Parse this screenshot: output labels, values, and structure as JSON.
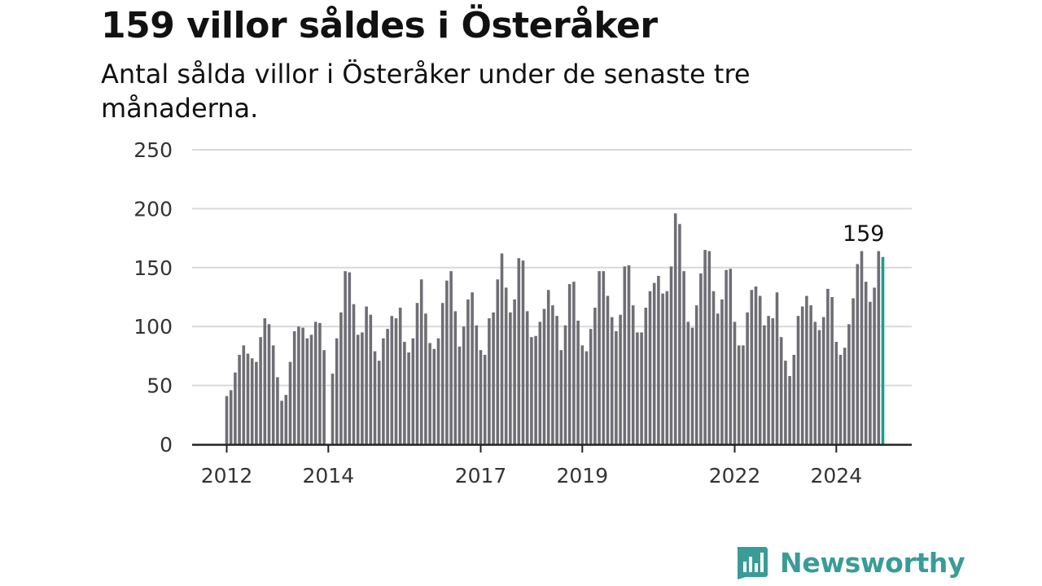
{
  "title": "159 villor såldes i Österåker",
  "subtitle": "Antal sålda villor i Österåker under de senaste tre månaderna.",
  "brand": {
    "name": "Newsworthy",
    "color": "#3a9c97",
    "icon": "bar-chart-badge-icon"
  },
  "colors": {
    "bars": "#6f6e75",
    "highlight": "#1b9e8f",
    "grid": "#d9d9d9",
    "axis": "#222222"
  },
  "chart_data": {
    "type": "bar",
    "title": "159 villor såldes i Österåker",
    "subtitle": "Antal sålda villor i Österåker under de senaste tre månaderna.",
    "xlabel": "",
    "ylabel": "",
    "ylim": [
      0,
      250
    ],
    "yticks": [
      0,
      50,
      100,
      150,
      200,
      250
    ],
    "xticks": [
      "2012",
      "2014",
      "2017",
      "2019",
      "2022",
      "2024"
    ],
    "grid": true,
    "series": [
      {
        "start": "2012-01",
        "values": [
          41,
          46,
          61,
          76,
          84,
          77,
          73,
          70,
          91,
          107,
          102,
          84,
          57,
          37,
          42,
          70,
          96,
          100,
          99,
          90,
          93,
          104,
          103,
          80,
          null,
          60,
          90,
          112,
          147,
          146,
          119,
          93,
          95,
          117,
          110,
          79,
          71,
          90,
          98,
          109,
          107,
          116,
          87,
          78,
          90,
          120,
          140,
          111,
          86,
          81,
          90,
          120,
          139,
          147,
          113,
          83,
          100,
          123,
          129,
          101,
          80,
          76,
          107,
          112,
          140,
          162,
          133,
          112,
          123,
          158,
          156,
          113,
          91,
          92,
          104,
          115,
          131,
          118,
          109,
          80,
          101,
          136,
          138,
          105,
          84,
          79,
          98,
          116,
          147,
          147,
          126,
          108,
          96,
          110,
          151,
          152,
          118,
          95,
          95,
          116,
          130,
          137,
          143,
          128,
          130,
          151,
          196,
          187,
          147,
          104,
          99,
          118,
          145,
          165,
          164,
          130,
          111,
          123,
          148,
          149,
          104,
          84,
          84,
          112,
          131,
          134,
          126,
          101,
          109,
          107,
          129,
          91,
          71,
          58,
          76,
          109,
          117,
          126,
          118,
          104,
          97,
          108,
          132,
          125,
          87,
          76,
          82,
          102,
          124,
          153,
          164,
          138,
          121,
          133,
          164,
          159
        ],
        "highlight_last": true
      }
    ],
    "annotations": [
      {
        "text": "159",
        "target": "last"
      }
    ]
  }
}
